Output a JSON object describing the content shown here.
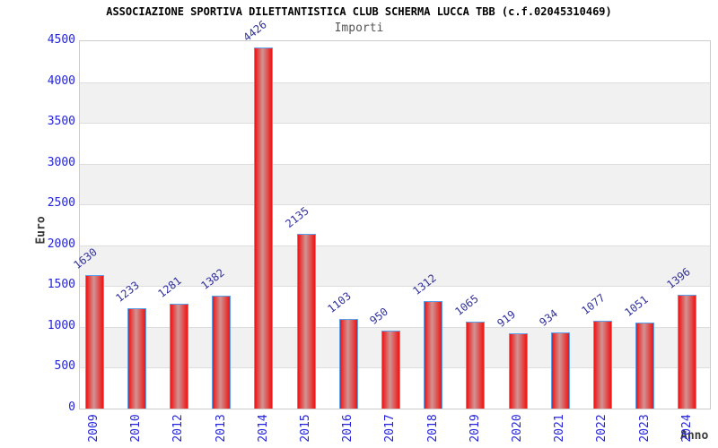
{
  "header": {
    "title": "ASSOCIAZIONE SPORTIVA DILETTANTISTICA CLUB SCHERMA LUCCA TBB (c.f.02045310469)",
    "subtitle": "Importi"
  },
  "chart_data": {
    "type": "bar",
    "title": "ASSOCIAZIONE SPORTIVA DILETTANTISTICA CLUB SCHERMA LUCCA TBB (c.f.02045310469)",
    "subtitle": "Importi",
    "categories": [
      "2009",
      "2010",
      "2012",
      "2013",
      "2014",
      "2015",
      "2016",
      "2017",
      "2018",
      "2019",
      "2020",
      "2021",
      "2022",
      "2023",
      "2024"
    ],
    "values": [
      1630,
      1233,
      1281,
      1382,
      4426,
      2135,
      1103,
      950,
      1312,
      1065,
      919,
      934,
      1077,
      1051,
      1396
    ],
    "xlabel": "Anno",
    "ylabel": "Euro",
    "ylim": [
      0,
      4500
    ],
    "yticks": [
      0,
      500,
      1000,
      1500,
      2000,
      2500,
      3000,
      3500,
      4000,
      4500
    ],
    "grid": "horizontal-bands",
    "legend": null,
    "colors": {
      "bar_edge_red": "#ee1414",
      "bar_center_light": "#d19494",
      "bar_border_blue": "#5ca0ea",
      "axis_tick_label_blue": "#2424dd",
      "value_label_navy": "#31319d",
      "band_gray": "#f1f1f1",
      "gridline_gray": "#dddddd",
      "frame_gray": "#cccccc",
      "axis_title_dark": "#3a3a3a",
      "title_black": "#000000",
      "subtitle_gray": "#555555"
    }
  }
}
